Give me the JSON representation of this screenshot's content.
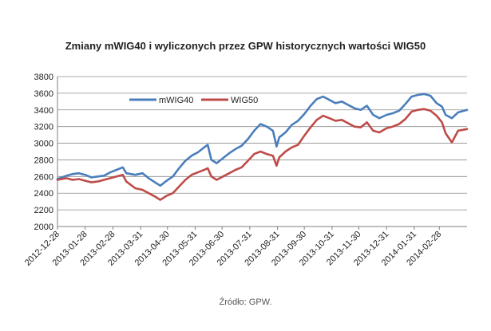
{
  "chart_data": {
    "type": "line",
    "title": "Zmiany mWIG40 i wyliczonych przez GPW historycznych wartości WIG50",
    "source": "Źródło: GPW.",
    "ylim": [
      2000,
      3800
    ],
    "yticks": [
      2000,
      2200,
      2400,
      2600,
      2800,
      3000,
      3200,
      3400,
      3600,
      3800
    ],
    "xlim": [
      "2012-12-28",
      "2014-03-31"
    ],
    "xticks": [
      "2012-12-28",
      "2013-01-28",
      "2013-02-28",
      "2013-03-31",
      "2013-04-30",
      "2013-05-31",
      "2013-06-30",
      "2013-07-31",
      "2013-08-31",
      "2013-09-30",
      "2013-10-31",
      "2013-11-30",
      "2013-12-31",
      "2014-01-31",
      "2014-02-28"
    ],
    "legend_position": "top-left",
    "grid": "y-major",
    "series": [
      {
        "name": "mWIG40",
        "color": "#4a7ebb",
        "points": [
          [
            "2012-12-28",
            2570
          ],
          [
            "2013-01-07",
            2610
          ],
          [
            "2013-01-14",
            2630
          ],
          [
            "2013-01-21",
            2640
          ],
          [
            "2013-01-28",
            2620
          ],
          [
            "2013-02-04",
            2590
          ],
          [
            "2013-02-11",
            2600
          ],
          [
            "2013-02-18",
            2610
          ],
          [
            "2013-02-25",
            2650
          ],
          [
            "2013-03-04",
            2680
          ],
          [
            "2013-03-11",
            2710
          ],
          [
            "2013-03-15",
            2640
          ],
          [
            "2013-03-25",
            2620
          ],
          [
            "2013-04-02",
            2640
          ],
          [
            "2013-04-09",
            2580
          ],
          [
            "2013-04-16",
            2530
          ],
          [
            "2013-04-22",
            2490
          ],
          [
            "2013-04-29",
            2550
          ],
          [
            "2013-05-06",
            2600
          ],
          [
            "2013-05-13",
            2700
          ],
          [
            "2013-05-20",
            2790
          ],
          [
            "2013-05-27",
            2850
          ],
          [
            "2013-06-03",
            2890
          ],
          [
            "2013-06-10",
            2950
          ],
          [
            "2013-06-14",
            2980
          ],
          [
            "2013-06-18",
            2800
          ],
          [
            "2013-06-24",
            2760
          ],
          [
            "2013-07-01",
            2820
          ],
          [
            "2013-07-08",
            2880
          ],
          [
            "2013-07-15",
            2930
          ],
          [
            "2013-07-22",
            2970
          ],
          [
            "2013-07-29",
            3050
          ],
          [
            "2013-08-05",
            3150
          ],
          [
            "2013-08-12",
            3230
          ],
          [
            "2013-08-19",
            3200
          ],
          [
            "2013-08-26",
            3150
          ],
          [
            "2013-08-30",
            2960
          ],
          [
            "2013-09-02",
            3070
          ],
          [
            "2013-09-09",
            3130
          ],
          [
            "2013-09-16",
            3220
          ],
          [
            "2013-09-23",
            3270
          ],
          [
            "2013-09-30",
            3350
          ],
          [
            "2013-10-07",
            3450
          ],
          [
            "2013-10-14",
            3530
          ],
          [
            "2013-10-21",
            3560
          ],
          [
            "2013-10-28",
            3520
          ],
          [
            "2013-11-04",
            3480
          ],
          [
            "2013-11-11",
            3500
          ],
          [
            "2013-11-18",
            3460
          ],
          [
            "2013-11-25",
            3420
          ],
          [
            "2013-12-02",
            3400
          ],
          [
            "2013-12-09",
            3450
          ],
          [
            "2013-12-16",
            3340
          ],
          [
            "2013-12-23",
            3300
          ],
          [
            "2013-12-31",
            3340
          ],
          [
            "2014-01-07",
            3360
          ],
          [
            "2014-01-14",
            3390
          ],
          [
            "2014-01-21",
            3470
          ],
          [
            "2014-01-28",
            3560
          ],
          [
            "2014-02-04",
            3580
          ],
          [
            "2014-02-11",
            3590
          ],
          [
            "2014-02-18",
            3570
          ],
          [
            "2014-02-25",
            3480
          ],
          [
            "2014-03-03",
            3440
          ],
          [
            "2014-03-07",
            3340
          ],
          [
            "2014-03-14",
            3300
          ],
          [
            "2014-03-21",
            3370
          ],
          [
            "2014-03-31",
            3400
          ]
        ]
      },
      {
        "name": "WIG50",
        "color": "#be4b48",
        "points": [
          [
            "2012-12-28",
            2560
          ],
          [
            "2013-01-07",
            2580
          ],
          [
            "2013-01-14",
            2560
          ],
          [
            "2013-01-21",
            2570
          ],
          [
            "2013-01-28",
            2550
          ],
          [
            "2013-02-04",
            2530
          ],
          [
            "2013-02-11",
            2540
          ],
          [
            "2013-02-18",
            2560
          ],
          [
            "2013-02-25",
            2580
          ],
          [
            "2013-03-04",
            2600
          ],
          [
            "2013-03-11",
            2620
          ],
          [
            "2013-03-15",
            2540
          ],
          [
            "2013-03-25",
            2460
          ],
          [
            "2013-04-02",
            2440
          ],
          [
            "2013-04-09",
            2400
          ],
          [
            "2013-04-16",
            2360
          ],
          [
            "2013-04-22",
            2320
          ],
          [
            "2013-04-29",
            2370
          ],
          [
            "2013-05-06",
            2400
          ],
          [
            "2013-05-13",
            2480
          ],
          [
            "2013-05-20",
            2560
          ],
          [
            "2013-05-27",
            2620
          ],
          [
            "2013-06-03",
            2650
          ],
          [
            "2013-06-10",
            2680
          ],
          [
            "2013-06-14",
            2700
          ],
          [
            "2013-06-18",
            2600
          ],
          [
            "2013-06-24",
            2560
          ],
          [
            "2013-07-01",
            2600
          ],
          [
            "2013-07-08",
            2640
          ],
          [
            "2013-07-15",
            2680
          ],
          [
            "2013-07-22",
            2710
          ],
          [
            "2013-07-29",
            2790
          ],
          [
            "2013-08-05",
            2870
          ],
          [
            "2013-08-12",
            2900
          ],
          [
            "2013-08-19",
            2870
          ],
          [
            "2013-08-26",
            2850
          ],
          [
            "2013-08-30",
            2730
          ],
          [
            "2013-09-02",
            2830
          ],
          [
            "2013-09-09",
            2900
          ],
          [
            "2013-09-16",
            2950
          ],
          [
            "2013-09-23",
            2980
          ],
          [
            "2013-09-30",
            3090
          ],
          [
            "2013-10-07",
            3190
          ],
          [
            "2013-10-14",
            3280
          ],
          [
            "2013-10-21",
            3330
          ],
          [
            "2013-10-28",
            3300
          ],
          [
            "2013-11-04",
            3270
          ],
          [
            "2013-11-11",
            3280
          ],
          [
            "2013-11-18",
            3240
          ],
          [
            "2013-11-25",
            3200
          ],
          [
            "2013-12-02",
            3190
          ],
          [
            "2013-12-09",
            3250
          ],
          [
            "2013-12-16",
            3150
          ],
          [
            "2013-12-23",
            3130
          ],
          [
            "2013-12-31",
            3180
          ],
          [
            "2014-01-07",
            3200
          ],
          [
            "2014-01-14",
            3230
          ],
          [
            "2014-01-21",
            3290
          ],
          [
            "2014-01-28",
            3380
          ],
          [
            "2014-02-04",
            3400
          ],
          [
            "2014-02-11",
            3410
          ],
          [
            "2014-02-18",
            3390
          ],
          [
            "2014-02-25",
            3330
          ],
          [
            "2014-03-03",
            3250
          ],
          [
            "2014-03-07",
            3120
          ],
          [
            "2014-03-14",
            3010
          ],
          [
            "2014-03-21",
            3150
          ],
          [
            "2014-03-31",
            3170
          ]
        ]
      }
    ]
  }
}
